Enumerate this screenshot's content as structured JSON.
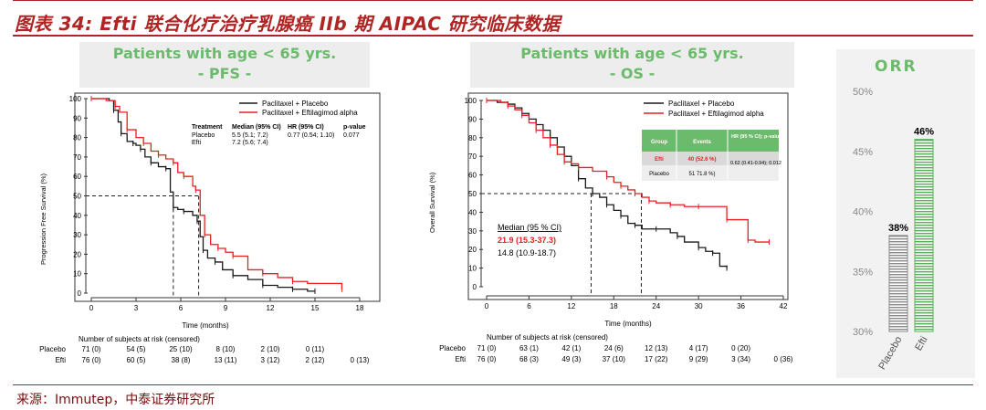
{
  "page": {
    "title": "图表 34:  Efti 联合化疗治疗乳腺癌 IIb 期 AIPAC 研究临床数据",
    "source": "来源：Immutep，中泰证券研究所"
  },
  "colors": {
    "placebo": "#1a1a1a",
    "efti": "#e82020",
    "header_text": "#6cba6c",
    "header_bg": "#ededed",
    "title": "#b02424",
    "orr_placebo": "#8a8a8a",
    "orr_efti": "#5aae5a"
  },
  "pfs": {
    "header_line1": "Patients with age < 65 yrs.",
    "header_line2": "- PFS -",
    "legend": [
      "Paclitaxel + Placebo",
      "Paclitaxel + Eftilagimod alpha"
    ],
    "stats_header": [
      "Treatment",
      "Median (95% CI)",
      "HR (95% CI)",
      "p-value"
    ],
    "stats_rows": [
      [
        "Placebo",
        "5.5 (5.1; 7.2)",
        "0.77 (0.54; 1.10)",
        "0.077"
      ],
      [
        "Efti",
        "7.2 (5.6; 7.4)",
        "",
        ""
      ]
    ],
    "risk_title": "Number of subjects at risk (censored)",
    "risk_rows": [
      {
        "label": "Placebo",
        "values": [
          "71 (0)",
          "54 (5)",
          "25 (10)",
          "8 (10)",
          "2 (10)",
          "0 (11)",
          ""
        ]
      },
      {
        "label": "Efti",
        "values": [
          "76 (0)",
          "60 (5)",
          "38 (8)",
          "13 (11)",
          "3 (12)",
          "2 (12)",
          "0 (13)"
        ]
      }
    ]
  },
  "os": {
    "header_line1": "Patients with age < 65 yrs.",
    "header_line2": "- OS -",
    "legend": [
      "Paclitaxel + Placebo",
      "Paclitaxel + Eftilagimod alpha"
    ],
    "table_header": [
      "Group",
      "Events",
      "HR (95 % CI); p-value"
    ],
    "table_rows": [
      [
        "Efti",
        "40 (52.6 %)",
        "0.62 (0.41-0.94); 0.012"
      ],
      [
        "Placebo",
        "51 71.8 %)",
        ""
      ]
    ],
    "median_title": "Median (95 % CI)",
    "median_efti": "21.9 (15.3-37.3)",
    "median_placebo": "14.8 (10.9-18.7)",
    "risk_title": "Number of subjects at risk (censored)",
    "risk_rows": [
      {
        "label": "Placebo",
        "values": [
          "71 (0)",
          "63 (1)",
          "42 (1)",
          "24 (6)",
          "12 (13)",
          "4 (17)",
          "0 (20)",
          ""
        ]
      },
      {
        "label": "Efti",
        "values": [
          "76 (0)",
          "68 (3)",
          "49 (3)",
          "37 (10)",
          "17 (22)",
          "9 (29)",
          "3 (34)",
          "0 (36)"
        ]
      }
    ]
  },
  "orr": {
    "title": "ORR",
    "y_ticks": [
      "30%",
      "35%",
      "40%",
      "45%",
      "50%"
    ]
  },
  "chart_data": [
    {
      "type": "line",
      "xlabel": "Time (months)",
      "ylabel": "Progression Free Survival (%)",
      "xlim": [
        0,
        18
      ],
      "ylim": [
        0,
        100
      ],
      "x_ticks": [
        0,
        3,
        6,
        9,
        12,
        15,
        18
      ],
      "y_ticks": [
        0,
        10,
        20,
        30,
        40,
        50,
        60,
        70,
        80,
        90,
        100
      ],
      "reference_line": {
        "y": 50,
        "x_values": [
          5.5,
          7.2
        ]
      },
      "series": [
        {
          "name": "Paclitaxel + Placebo",
          "x": [
            0,
            1.2,
            1.5,
            1.8,
            2.0,
            2.4,
            2.8,
            3.0,
            3.3,
            3.6,
            4.0,
            4.5,
            5.0,
            5.3,
            5.5,
            5.8,
            6.2,
            6.8,
            7.1,
            7.3,
            7.5,
            7.8,
            8.3,
            8.8,
            9.5,
            10.5,
            11.5,
            12.5,
            13.5,
            14.5,
            15.0
          ],
          "y": [
            100,
            99,
            94,
            88,
            82,
            78,
            77,
            76,
            74,
            70,
            67,
            65,
            64,
            52,
            44,
            43,
            42,
            40,
            37,
            29,
            22,
            18,
            16,
            12,
            9,
            7,
            4,
            3,
            2,
            1,
            1
          ]
        },
        {
          "name": "Paclitaxel + Eftilagimod alpha",
          "x": [
            0,
            1.0,
            1.6,
            1.9,
            2.4,
            3.0,
            3.5,
            4.0,
            4.5,
            5.0,
            5.5,
            5.8,
            6.2,
            6.8,
            7.0,
            7.3,
            7.6,
            8.0,
            8.5,
            9.0,
            9.5,
            10.5,
            11.5,
            12.5,
            13.5,
            14.5,
            16.8
          ],
          "y": [
            100,
            99,
            96,
            93,
            84,
            80,
            77,
            73,
            71,
            69,
            67,
            62,
            60,
            55,
            53,
            40,
            30,
            25,
            23,
            21,
            19,
            12,
            10,
            8,
            6,
            5,
            2
          ]
        }
      ]
    },
    {
      "type": "line",
      "xlabel": "Time (months)",
      "ylabel": "Overall Survival (%)",
      "xlim": [
        0,
        42
      ],
      "ylim": [
        0,
        100
      ],
      "x_ticks": [
        0,
        6,
        12,
        18,
        24,
        30,
        36,
        42
      ],
      "y_ticks": [
        0,
        10,
        20,
        30,
        40,
        50,
        60,
        70,
        80,
        90,
        100
      ],
      "reference_line": {
        "y": 50,
        "x_values": [
          14.8,
          21.9
        ]
      },
      "series": [
        {
          "name": "Paclitaxel + Placebo",
          "x": [
            0,
            1.5,
            3,
            4,
            5,
            6,
            7,
            8,
            9,
            10,
            11,
            12,
            13,
            14,
            15,
            16,
            17,
            18,
            19,
            20,
            21,
            22,
            24,
            26,
            27,
            28,
            30,
            31,
            32,
            33,
            34
          ],
          "y": [
            100,
            99,
            98,
            96,
            93,
            90,
            87,
            84,
            80,
            75,
            70,
            65,
            58,
            53,
            50,
            48,
            44,
            41,
            38,
            34,
            33,
            31,
            31,
            29,
            27,
            24,
            21,
            19,
            18,
            11,
            10
          ]
        },
        {
          "name": "Paclitaxel + Eftilagimod alpha",
          "x": [
            0,
            2,
            3,
            4,
            5,
            6,
            7,
            8,
            9,
            10,
            11,
            12,
            13,
            15,
            17,
            18,
            19,
            20,
            21,
            22,
            23,
            24,
            26,
            28,
            30,
            32,
            34,
            36,
            37,
            38,
            40
          ],
          "y": [
            100,
            99,
            97,
            95,
            92,
            88,
            84,
            80,
            76,
            71,
            67,
            66,
            64,
            62,
            59,
            56,
            54,
            52,
            50,
            48,
            46,
            45,
            44,
            43,
            43,
            43,
            36,
            36,
            25,
            24,
            24
          ]
        }
      ]
    },
    {
      "type": "bar",
      "title": "ORR",
      "categories": [
        "Placebo",
        "Efti"
      ],
      "values": [
        38,
        46
      ],
      "value_labels": [
        "38%",
        "46%"
      ],
      "ylim": [
        30,
        50
      ],
      "y_ticks": [
        30,
        35,
        40,
        45,
        50
      ]
    }
  ]
}
